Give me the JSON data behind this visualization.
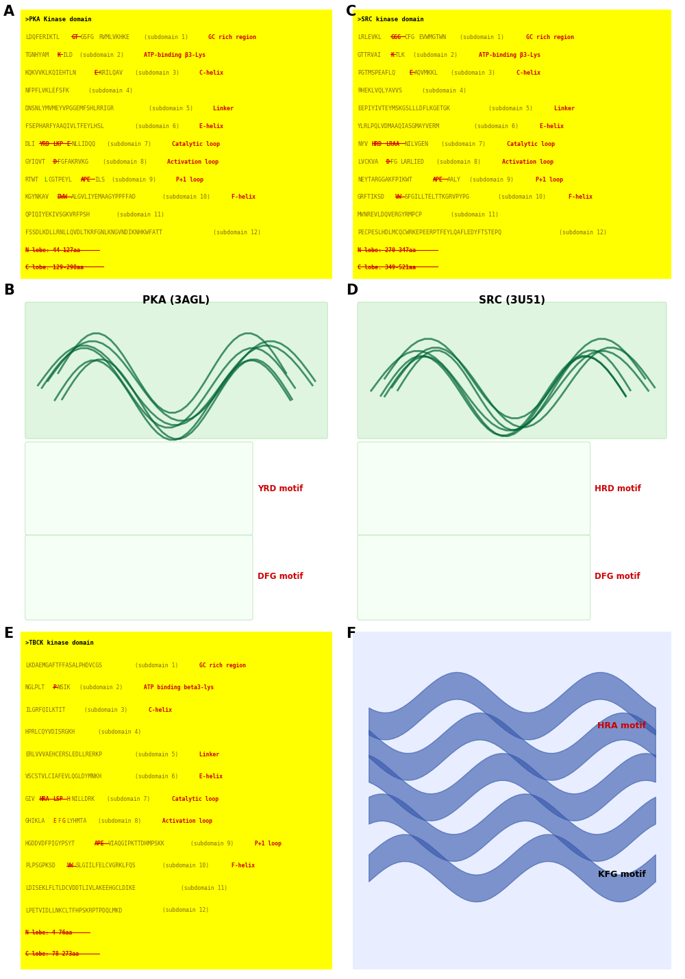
{
  "figure_width": 10.0,
  "figure_height": 14.29,
  "colors": {
    "seq": "#8B6914",
    "red": "#CC0000",
    "green": "#009900",
    "label": "#CC0000",
    "bg": "#FFFF00",
    "title": "#000000",
    "white": "#FFFFFF"
  },
  "panel_A": {
    "title": ">PKA Kinase domain",
    "lines": [
      {
        "pre": "LDQFERIKTL",
        "parts": [
          [
            "GT",
            "red",
            true
          ],
          [
            "GSFG",
            "seq",
            false
          ],
          [
            "RVMLVKHKE",
            "seq",
            false
          ]
        ],
        "sub": " (subdomain 1)",
        "lbl": " GC rich region"
      },
      {
        "pre": "TGNHYAM",
        "parts": [
          [
            "K",
            "red",
            true
          ],
          [
            "ILD",
            "seq",
            false
          ]
        ],
        "sub": " (subdomain 2)",
        "lbl": " ATP-binding β3-Lys"
      },
      {
        "pre": "KQKVVKLKQIEHTLN",
        "parts": [
          [
            "E",
            "red",
            true
          ],
          [
            "KRILQAV",
            "seq",
            false
          ]
        ],
        "sub": " (subdomain 3)",
        "lbl": " C-helix"
      },
      {
        "pre": "NFPFLVKLEFSFK",
        "parts": [],
        "sub": " (subdomain 4)",
        "lbl": ""
      },
      {
        "pre": "DNSNLYMVMEYVPGGEMFSHLRRIGR",
        "parts": [],
        "sub": " (subdomain 5)",
        "lbl": " Linker"
      },
      {
        "pre": "FSEPHARFYAAQIVLTFEYLHSL",
        "parts": [],
        "sub": " (subdomain 6)",
        "lbl": " E-helix"
      },
      {
        "pre": "DLI",
        "parts": [
          [
            "YRD",
            "red",
            true
          ],
          [
            "LKP",
            "red",
            true
          ],
          [
            "E",
            "red",
            true
          ],
          [
            "NLLIDQQ",
            "seq",
            false
          ]
        ],
        "sub": " (subdomain 7)",
        "lbl": " Catalytic loop"
      },
      {
        "pre": "GYIQVT",
        "parts": [
          [
            "D",
            "red",
            true
          ],
          [
            "FGFAKRVKG",
            "seq",
            false
          ]
        ],
        "sub": " (subdomain 8)",
        "lbl": " Activation loop"
      },
      {
        "pre": "RTWT",
        "parts": [
          [
            "L",
            "green",
            false
          ],
          [
            "CGTPEYL",
            "seq",
            false
          ],
          [
            "APE",
            "red",
            true
          ],
          [
            "ILS",
            "seq",
            false
          ]
        ],
        "sub": " (subdomain 9)",
        "lbl": " P+1 loop"
      },
      {
        "pre": "KGYNKAV",
        "parts": [
          [
            "DWW",
            "red",
            true
          ],
          [
            "ALGVLIYEMAAGYPPFFAD",
            "seq",
            false
          ]
        ],
        "sub": " (subdomain 10)",
        "lbl": " F-helix"
      },
      {
        "pre": "QPIQIYEKIVSGKVRFPSH",
        "parts": [],
        "sub": " (subdomain 11)",
        "lbl": ""
      },
      {
        "pre": "FSSDLKDLLRNLLQVDLTKRFGNLKNGVNDIKNHKWFATT",
        "parts": [],
        "sub": " (subdomain 12)",
        "lbl": ""
      }
    ],
    "lobe1": "N lobe: 44-127aa",
    "lobe2": "C lobe: 129-298aa"
  },
  "panel_C": {
    "title": ">SRC kinase domain",
    "lines": [
      {
        "pre": "LRLEVKL",
        "parts": [
          [
            "GGG",
            "red",
            true
          ],
          [
            "CFG",
            "seq",
            false
          ],
          [
            "EVWMGTWN",
            "seq",
            false
          ]
        ],
        "sub": " (subdomain 1)",
        "lbl": " GC rich region"
      },
      {
        "pre": "GTTRVAI",
        "parts": [
          [
            "K",
            "red",
            true
          ],
          [
            "TLK",
            "seq",
            false
          ]
        ],
        "sub": " (subdomain 2)",
        "lbl": " ATP-binding β3-Lys"
      },
      {
        "pre": "PGTMSPEAFLQ",
        "parts": [
          [
            "E",
            "red",
            true
          ],
          [
            "AQVMKKL",
            "seq",
            false
          ]
        ],
        "sub": " (subdomain 3)",
        "lbl": " C-helix"
      },
      {
        "pre": "RHEKLVQLYAVVS",
        "parts": [],
        "sub": " (subdomain 4)",
        "lbl": ""
      },
      {
        "pre": "EEPIYIVTEYMSKGSLLLDFLKGETGK",
        "parts": [],
        "sub": " (subdomain 5)",
        "lbl": " Linker"
      },
      {
        "pre": "YLRLPQLVDMAAQIASGMAYVERM",
        "parts": [],
        "sub": " (subdomain 6)",
        "lbl": " E-helix"
      },
      {
        "pre": "NYV",
        "parts": [
          [
            "HRD",
            "red",
            true
          ],
          [
            "LRAA",
            "red",
            true
          ],
          [
            "NILVGEN",
            "seq",
            false
          ]
        ],
        "sub": " (subdomain 7)",
        "lbl": " Catalytic loop"
      },
      {
        "pre": "LVCKVA",
        "parts": [
          [
            "D",
            "red",
            true
          ],
          [
            "FG",
            "seq",
            false
          ],
          [
            "LARLIED",
            "seq",
            false
          ]
        ],
        "sub": " (subdomain 8)",
        "lbl": " Activation loop"
      },
      {
        "pre": "NEYTARGGAKFPIKWT",
        "parts": [
          [
            "APE",
            "red",
            true
          ],
          [
            "AALY",
            "seq",
            false
          ]
        ],
        "sub": " (subdomain 9)",
        "lbl": " P+1 loop"
      },
      {
        "pre": "GRFTIKSD",
        "parts": [
          [
            "VW",
            "red",
            true
          ],
          [
            "SFGILLTELTTKGRVPYPG",
            "seq",
            false
          ]
        ],
        "sub": " (subdomain 10)",
        "lbl": " F-helix"
      },
      {
        "pre": "MVNREVLDQVERGYRMPCP",
        "parts": [],
        "sub": " (subdomain 11)",
        "lbl": ""
      },
      {
        "pre": "PECPESLHDLMCQCWRKEPEERPTFEYLQAFLEDYFTSTEPQ",
        "parts": [],
        "sub": " (subdomain 12)",
        "lbl": ""
      }
    ],
    "lobe1": "N lobe: 270-347aa",
    "lobe2": "C lobe: 349-521aa"
  },
  "panel_E": {
    "title": ">TBCK kinase domain",
    "lines": [
      {
        "pre": "LKDAEMGAFTFFASALPHDVCGS",
        "parts": [],
        "sub": " (subdomain 1)",
        "lbl": " GC rich region"
      },
      {
        "pre": "NGLPLT",
        "parts": [
          [
            "P",
            "red",
            true
          ],
          [
            "NSIK",
            "seq",
            false
          ]
        ],
        "sub": " (subdomain 2)",
        "lbl": " ATP binding beta3-lys"
      },
      {
        "pre": "ILGRFQILKTIT",
        "parts": [],
        "sub": " (subdomain 3)",
        "lbl": " C-helix"
      },
      {
        "pre": "HPRLCQYVDISRGKH",
        "parts": [],
        "sub": " (subdomain 4)",
        "lbl": ""
      },
      {
        "pre": "ERLVVVAEHCERSLEDLLRERKP",
        "parts": [],
        "sub": " (subdomain 5)",
        "lbl": " Linker"
      },
      {
        "pre": "VSCSTVLCIAFEVLQGLDYMNKH",
        "parts": [],
        "sub": " (subdomain 6)",
        "lbl": " E-helix"
      },
      {
        "pre": "GIV",
        "parts": [
          [
            "HRA",
            "red",
            true
          ],
          [
            "LSP",
            "red",
            true
          ],
          [
            "H",
            "red",
            false
          ],
          [
            "NILLDRK",
            "seq",
            false
          ]
        ],
        "sub": " (subdomain 7)",
        "lbl": " Catalytic loop"
      },
      {
        "pre": "GHIKLA",
        "parts": [
          [
            "E",
            "red",
            false
          ],
          [
            "F",
            "seq",
            false
          ],
          [
            "G",
            "red",
            false
          ],
          [
            "LYHMTA",
            "seq",
            false
          ]
        ],
        "sub": " (subdomain 8)",
        "lbl": " Activation loop"
      },
      {
        "pre": "HGDDVDFPIGYPSYT",
        "parts": [
          [
            "APE",
            "red",
            true
          ],
          [
            "VIAQGIPKTTDHMPSKK",
            "seq",
            false
          ]
        ],
        "sub": " (subdomain 9)",
        "lbl": " P+1 loop"
      },
      {
        "pre": "PLPSGPKSD",
        "parts": [
          [
            "VW",
            "red",
            true
          ],
          [
            "SLGIILFELCVGRKLFQS",
            "seq",
            false
          ]
        ],
        "sub": " (subdomain 10)",
        "lbl": " F-helix"
      },
      {
        "pre": "LDISEKLFLTLDCVDDTLIVLAKEEHGCLDIKE",
        "parts": [],
        "sub": " (subdomain 11)",
        "lbl": ""
      },
      {
        "pre": "LPETVIDLLNKCLTFHPSKRPTPDQLMKD",
        "parts": [],
        "sub": " (subdomain 12)",
        "lbl": ""
      }
    ],
    "lobe1": "N lobe: 4-76aa",
    "lobe2": "C lobe: 78-273aa"
  },
  "panel_B_title": "PKA (3AGL)",
  "panel_D_title": "SRC (3U51)",
  "yrd_label": "YRD motif",
  "dfg_label_pka": "DFG motif",
  "hrd_label": "HRD motif",
  "dfg_label_src": "DFG motif",
  "hra_label": "HRA motif",
  "kfg_label": "KFG motif"
}
